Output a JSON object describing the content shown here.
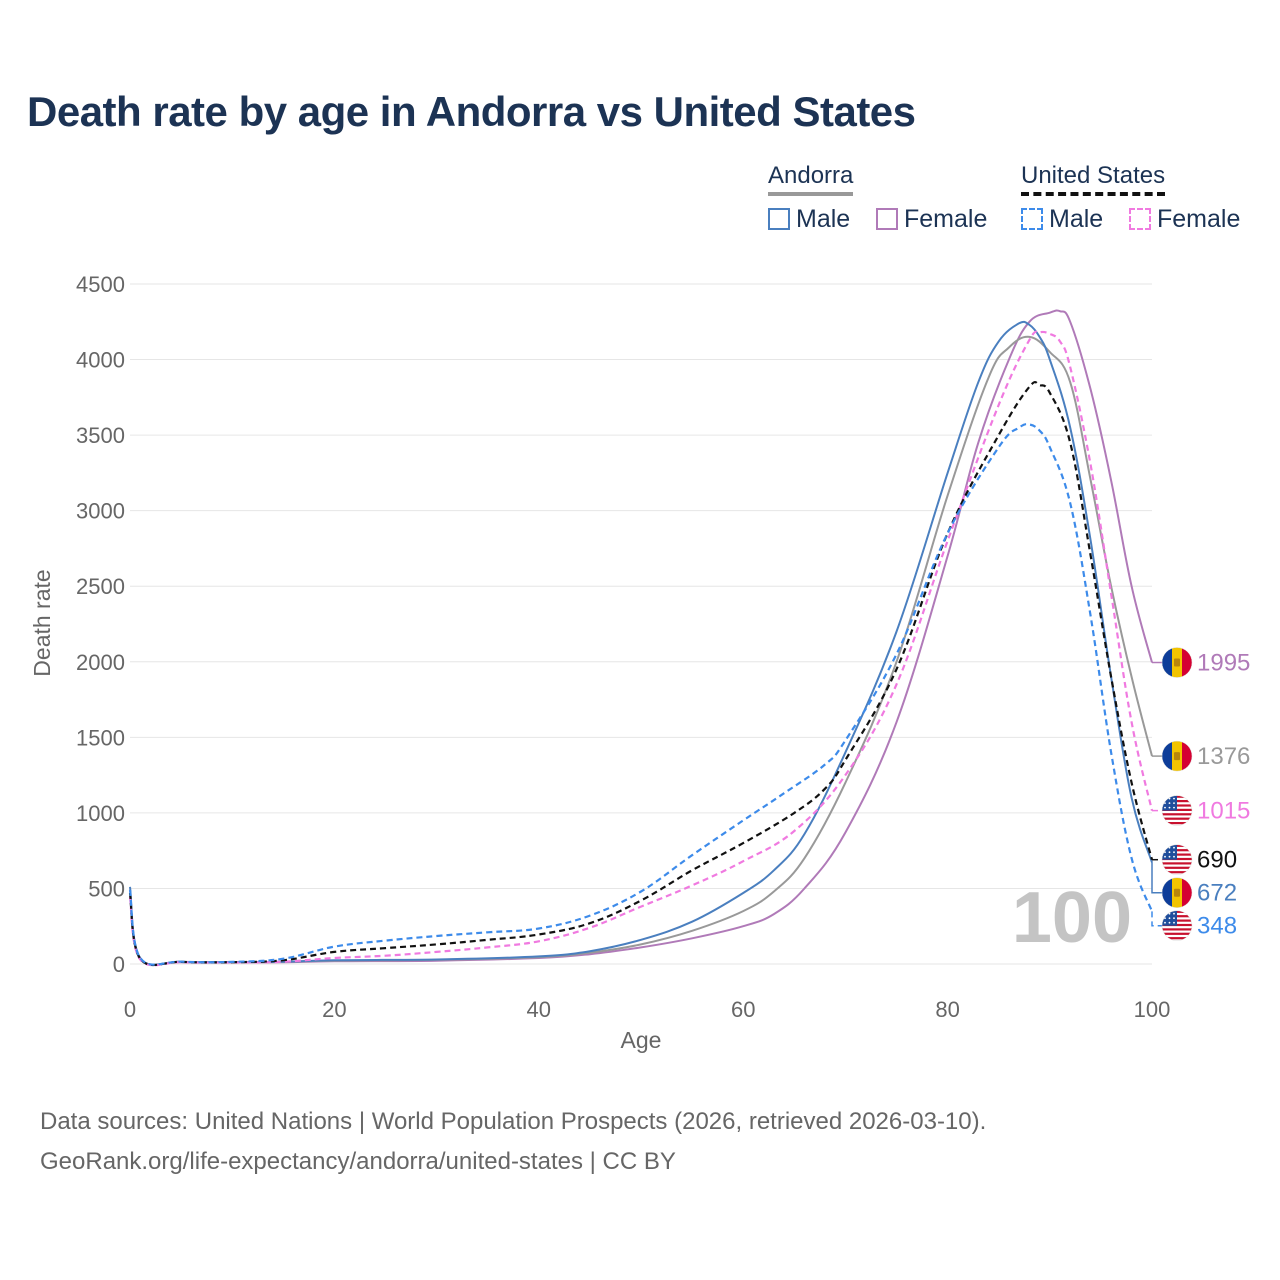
{
  "title": "Death rate by age in Andorra vs United States",
  "legend": {
    "groups": [
      {
        "name": "Andorra",
        "color": "#999999",
        "dash": false,
        "items": [
          {
            "label": "Male",
            "color": "#4a7fbf"
          },
          {
            "label": "Female",
            "color": "#b07ab8"
          }
        ]
      },
      {
        "name": "United States",
        "color": "#111111",
        "dash": true,
        "items": [
          {
            "label": "Male",
            "color": "#3d8bea"
          },
          {
            "label": "Female",
            "color": "#f07ae0"
          }
        ]
      }
    ]
  },
  "year_label": "100",
  "sources": {
    "line1": "Data sources: United Nations | World Population Prospects (2026, retrieved 2026-03-10).",
    "line2": "GeoRank.org/life-expectancy/andorra/united-states | CC BY"
  },
  "chart_data": {
    "type": "line",
    "title": "Death rate by age in Andorra vs United States",
    "xlabel": "Age",
    "ylabel": "Death rate",
    "xlim": [
      0,
      100
    ],
    "ylim": [
      0,
      4500
    ],
    "xticks": [
      0,
      20,
      40,
      60,
      80,
      100
    ],
    "yticks": [
      0,
      500,
      1000,
      1500,
      2000,
      2500,
      3000,
      3500,
      4000,
      4500
    ],
    "grid": true,
    "series": [
      {
        "name": "Andorra Female",
        "country": "Andorra",
        "flag": "andorra",
        "color": "#b07ab8",
        "dash": false,
        "end_label": "1995",
        "x": [
          0,
          1,
          5,
          10,
          15,
          20,
          30,
          40,
          45,
          50,
          55,
          60,
          63,
          66,
          70,
          75,
          80,
          83,
          86,
          88,
          90,
          91,
          92,
          94,
          96,
          98,
          100
        ],
        "y": [
          450,
          35,
          12,
          10,
          12,
          18,
          22,
          40,
          65,
          110,
          170,
          250,
          330,
          500,
          870,
          1600,
          2700,
          3450,
          4000,
          4250,
          4310,
          4320,
          4250,
          3800,
          3200,
          2500,
          1995
        ]
      },
      {
        "name": "Andorra Both",
        "country": "Andorra",
        "flag": "andorra",
        "color": "#999999",
        "dash": false,
        "end_label": "1376",
        "x": [
          0,
          1,
          5,
          10,
          15,
          20,
          30,
          40,
          45,
          50,
          55,
          60,
          63,
          66,
          70,
          75,
          80,
          84,
          86,
          88,
          90,
          92,
          94,
          96,
          98,
          100
        ],
        "y": [
          470,
          38,
          14,
          12,
          14,
          22,
          28,
          45,
          75,
          130,
          220,
          350,
          480,
          700,
          1200,
          2000,
          3100,
          3880,
          4080,
          4150,
          4050,
          3850,
          3200,
          2500,
          1900,
          1376
        ]
      },
      {
        "name": "Andorra Male",
        "country": "Andorra",
        "flag": "andorra",
        "color": "#4a7fbf",
        "dash": false,
        "end_label": "672",
        "x": [
          0,
          1,
          5,
          10,
          15,
          20,
          30,
          40,
          45,
          50,
          55,
          60,
          63,
          66,
          70,
          75,
          80,
          83,
          85,
          87,
          88,
          89,
          90,
          92,
          94,
          96,
          98,
          100
        ],
        "y": [
          510,
          40,
          15,
          13,
          15,
          25,
          30,
          50,
          85,
          160,
          280,
          470,
          620,
          860,
          1400,
          2200,
          3250,
          3850,
          4120,
          4240,
          4230,
          4150,
          4000,
          3550,
          2800,
          1900,
          1100,
          672
        ]
      },
      {
        "name": "United States Female",
        "country": "United States",
        "flag": "us",
        "color": "#f07ae0",
        "dash": true,
        "end_label": "1015",
        "x": [
          0,
          1,
          5,
          10,
          15,
          20,
          25,
          30,
          35,
          40,
          45,
          50,
          55,
          60,
          65,
          70,
          75,
          80,
          85,
          88,
          89,
          90,
          91,
          92,
          94,
          96,
          98,
          100
        ],
        "y": [
          440,
          30,
          12,
          10,
          15,
          40,
          55,
          80,
          110,
          150,
          240,
          380,
          520,
          680,
          880,
          1250,
          1850,
          2800,
          3700,
          4130,
          4180,
          4170,
          4120,
          3950,
          3300,
          2450,
          1600,
          1015
        ]
      },
      {
        "name": "United States Both",
        "country": "United States",
        "flag": "us",
        "color": "#111111",
        "dash": true,
        "end_label": "690",
        "x": [
          0,
          1,
          5,
          10,
          15,
          20,
          25,
          30,
          35,
          40,
          45,
          50,
          55,
          60,
          65,
          68,
          70,
          75,
          80,
          85,
          88,
          89,
          90,
          92,
          94,
          96,
          98,
          100
        ],
        "y": [
          470,
          35,
          14,
          12,
          25,
          80,
          105,
          130,
          160,
          195,
          270,
          420,
          620,
          800,
          1000,
          1160,
          1350,
          1950,
          2850,
          3500,
          3820,
          3830,
          3780,
          3450,
          2700,
          1900,
          1200,
          690
        ]
      },
      {
        "name": "United States Male",
        "country": "United States",
        "flag": "us",
        "color": "#3d8bea",
        "dash": true,
        "end_label": "348",
        "x": [
          0,
          1,
          5,
          10,
          15,
          20,
          25,
          30,
          35,
          40,
          45,
          50,
          55,
          60,
          64,
          68,
          70,
          75,
          80,
          85,
          87,
          88,
          89,
          90,
          92,
          94,
          96,
          98,
          100
        ],
        "y": [
          490,
          40,
          15,
          14,
          35,
          115,
          155,
          185,
          210,
          235,
          320,
          480,
          720,
          950,
          1130,
          1320,
          1480,
          2050,
          2850,
          3420,
          3550,
          3570,
          3530,
          3420,
          3050,
          2300,
          1400,
          700,
          348
        ]
      }
    ]
  }
}
